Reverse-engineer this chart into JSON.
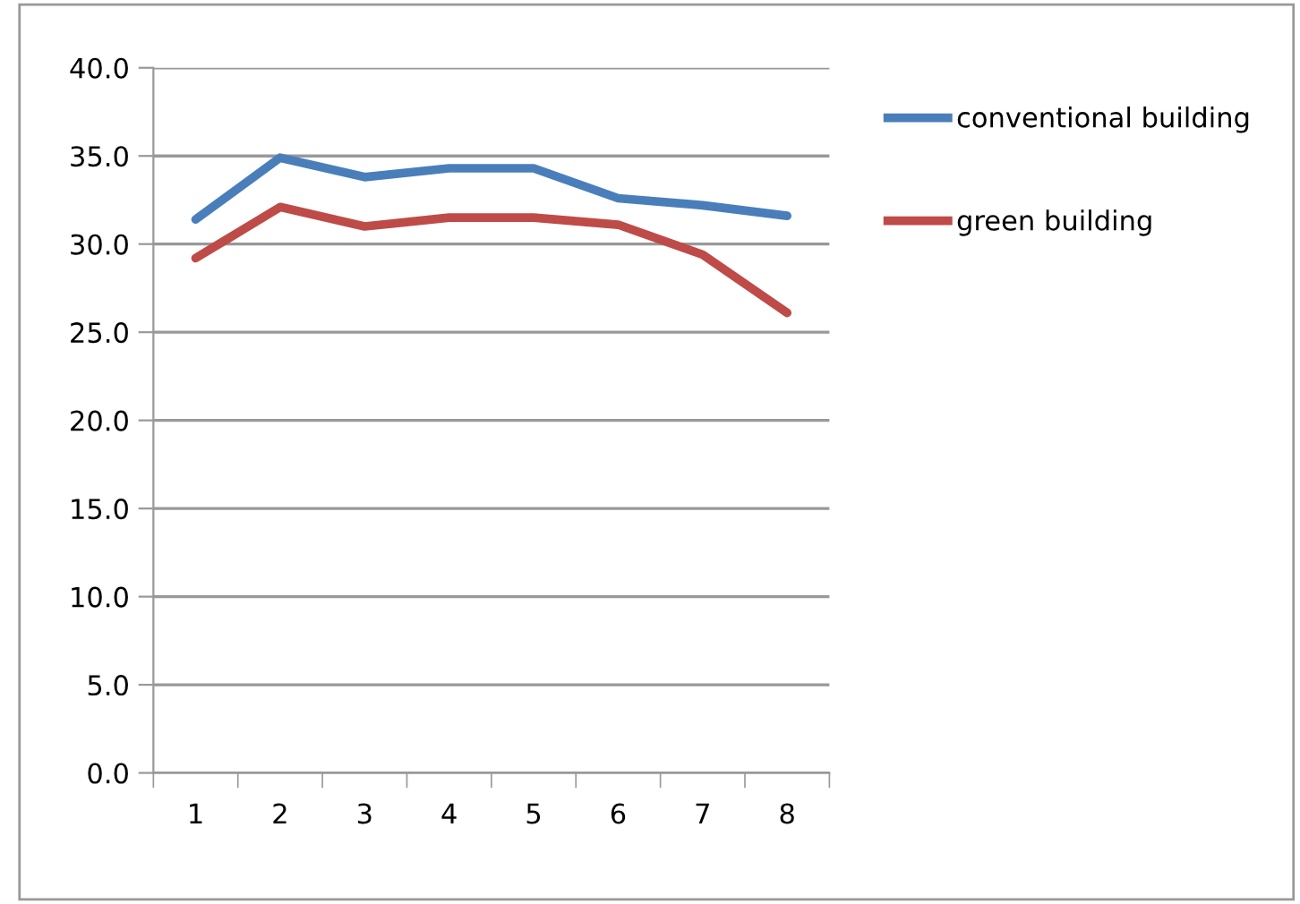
{
  "chart_data": {
    "type": "line",
    "categories": [
      "1",
      "2",
      "3",
      "4",
      "5",
      "6",
      "7",
      "8"
    ],
    "series": [
      {
        "name": "conventional building",
        "color": "#4a7ebb",
        "values": [
          31.4,
          34.9,
          33.8,
          34.3,
          34.3,
          32.6,
          32.2,
          31.6
        ]
      },
      {
        "name": "green building",
        "color": "#be4b48",
        "values": [
          29.2,
          32.1,
          31.0,
          31.5,
          31.5,
          31.1,
          29.4,
          26.1
        ]
      }
    ],
    "ylim": [
      0,
      40
    ],
    "yticks": [
      {
        "value": 0,
        "label": "0.0"
      },
      {
        "value": 5,
        "label": "5.0"
      },
      {
        "value": 10,
        "label": "10.0"
      },
      {
        "value": 15,
        "label": "15.0"
      },
      {
        "value": 20,
        "label": "20.0"
      },
      {
        "value": 25,
        "label": "25.0"
      },
      {
        "value": 30,
        "label": "30.0"
      },
      {
        "value": 35,
        "label": "35.0"
      },
      {
        "value": 40,
        "label": "40.0"
      }
    ],
    "grid": "y",
    "legend": "right",
    "marker": "none",
    "line_style": "solid"
  }
}
